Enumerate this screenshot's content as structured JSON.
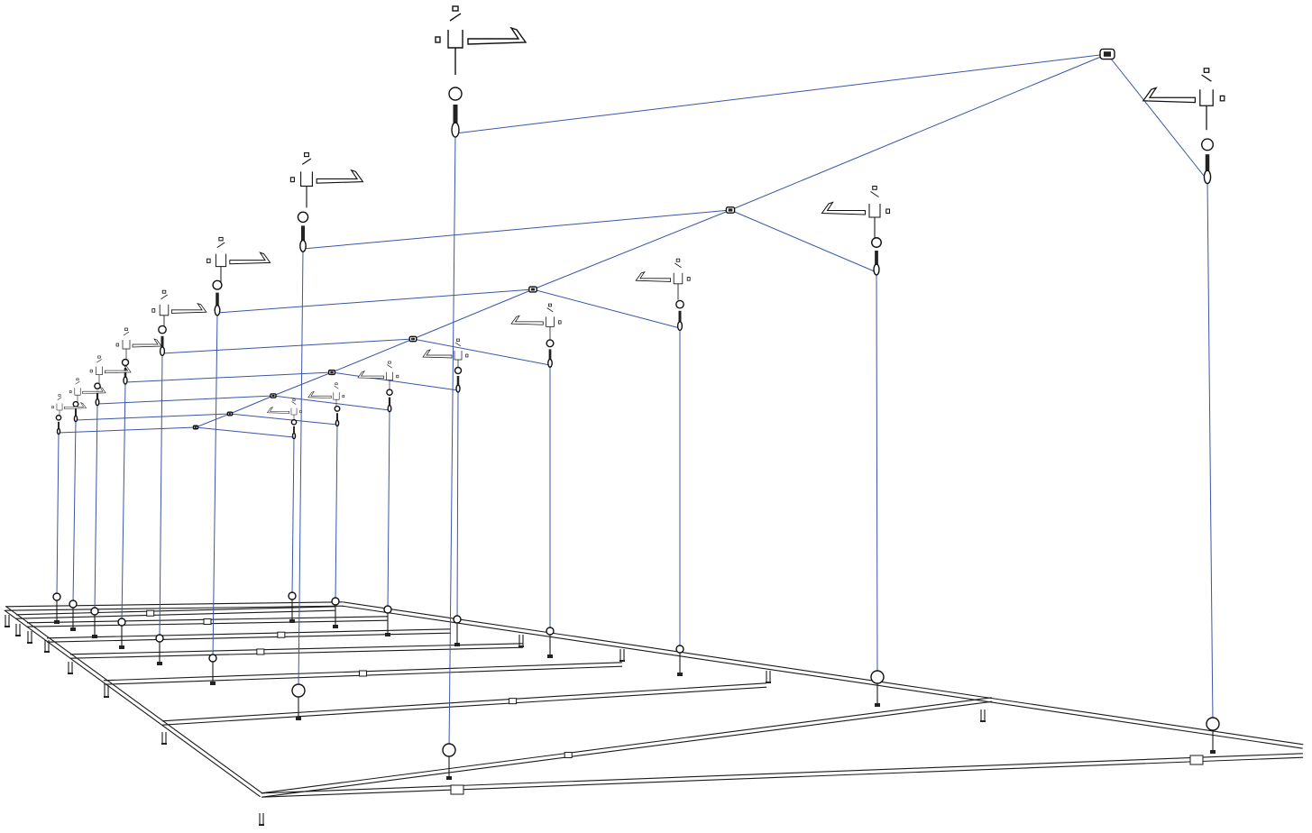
{
  "drawing": {
    "subject": "",
    "colors": {
      "background": "#ffffff",
      "frame": "#1a1a1a",
      "cable": "#3a55a8",
      "hardware": "#111111"
    },
    "icons": {
      "beam_clamp": "beam-clamp-icon",
      "eye_bolt": "eye-bolt-icon",
      "turnbuckle": "turnbuckle-icon",
      "cable_junction": "cable-junction-icon",
      "floor_eye_bolt": "floor-eye-bolt-icon",
      "leveling_foot": "leveling-foot-icon"
    }
  }
}
